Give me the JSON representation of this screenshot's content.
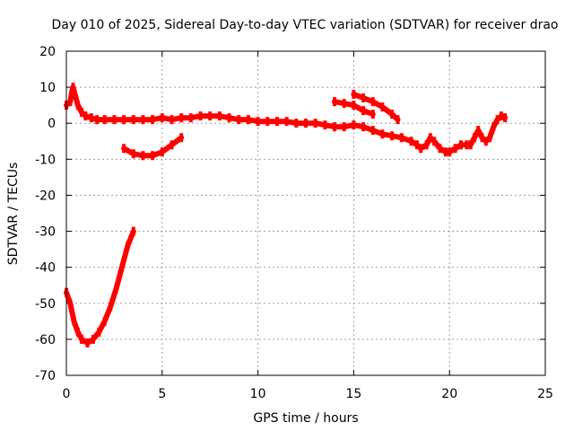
{
  "chart_data": {
    "type": "scatter",
    "title": "Day 010 of 2025, Sidereal Day-to-day VTEC variation (SDTVAR) for receiver drao",
    "xlabel": "GPS time / hours",
    "ylabel": "SDTVAR / TECUs",
    "xlim": [
      0,
      25
    ],
    "ylim": [
      -70,
      20
    ],
    "x_ticks": [
      0,
      5,
      10,
      15,
      20,
      25
    ],
    "y_ticks": [
      20,
      10,
      0,
      -10,
      -20,
      -30,
      -40,
      -50,
      -60,
      -70
    ],
    "x_tick_labels": [
      "0",
      "5",
      "10",
      "15",
      "20",
      "25"
    ],
    "y_tick_labels": [
      "20",
      "10",
      "0",
      "-10",
      "-20",
      "-30",
      "-40",
      "-50",
      "-60",
      "-70"
    ],
    "grid": true,
    "series_color": "#ff0000",
    "series": [
      {
        "name": "main-arc",
        "points": [
          [
            0.0,
            5
          ],
          [
            0.2,
            6
          ],
          [
            0.3,
            9
          ],
          [
            0.35,
            10
          ],
          [
            0.45,
            8
          ],
          [
            0.6,
            5
          ],
          [
            0.8,
            3
          ],
          [
            1.0,
            2
          ],
          [
            1.3,
            1.5
          ],
          [
            1.6,
            1
          ],
          [
            2.0,
            1
          ],
          [
            2.5,
            1
          ],
          [
            3.0,
            1
          ],
          [
            3.5,
            1
          ],
          [
            4.0,
            1
          ],
          [
            4.5,
            1
          ],
          [
            5.0,
            1.5
          ],
          [
            5.5,
            1
          ],
          [
            6.0,
            1.5
          ],
          [
            6.5,
            1.5
          ],
          [
            7.0,
            2
          ],
          [
            7.5,
            2
          ],
          [
            8.0,
            2
          ],
          [
            8.5,
            1.5
          ],
          [
            9.0,
            1
          ],
          [
            9.5,
            1
          ],
          [
            10.0,
            0.5
          ],
          [
            10.5,
            0.5
          ],
          [
            11.0,
            0.5
          ],
          [
            11.5,
            0.5
          ],
          [
            12.0,
            0
          ],
          [
            12.5,
            0
          ],
          [
            13.0,
            0
          ],
          [
            13.5,
            -0.5
          ],
          [
            14.0,
            -1
          ],
          [
            14.5,
            -1
          ],
          [
            15.0,
            -0.5
          ],
          [
            15.5,
            -1
          ],
          [
            16.0,
            -2
          ],
          [
            16.5,
            -3
          ],
          [
            17.0,
            -3.5
          ],
          [
            17.5,
            -4
          ],
          [
            18.0,
            -5
          ],
          [
            18.3,
            -6
          ],
          [
            18.5,
            -7
          ],
          [
            18.8,
            -6
          ],
          [
            19.0,
            -4
          ],
          [
            19.2,
            -5
          ],
          [
            19.5,
            -7
          ],
          [
            19.8,
            -8
          ],
          [
            20.0,
            -8
          ],
          [
            20.3,
            -7
          ],
          [
            20.6,
            -6
          ],
          [
            20.9,
            -6
          ],
          [
            21.1,
            -6
          ],
          [
            21.3,
            -4
          ],
          [
            21.5,
            -2
          ],
          [
            21.7,
            -4
          ],
          [
            21.9,
            -5
          ],
          [
            22.1,
            -4
          ],
          [
            22.3,
            -1
          ],
          [
            22.5,
            1
          ],
          [
            22.7,
            2
          ],
          [
            22.9,
            1.5
          ]
        ]
      },
      {
        "name": "arc-3.5-to-6",
        "points": [
          [
            3.0,
            -7
          ],
          [
            3.5,
            -8.5
          ],
          [
            4.0,
            -9
          ],
          [
            4.5,
            -9
          ],
          [
            5.0,
            -8
          ],
          [
            5.5,
            -6
          ],
          [
            6.0,
            -4
          ]
        ]
      },
      {
        "name": "arc-14-to-17",
        "points": [
          [
            14.0,
            6
          ],
          [
            14.5,
            5.5
          ],
          [
            15.0,
            5
          ],
          [
            15.5,
            3.5
          ],
          [
            16.0,
            2.5
          ]
        ]
      },
      {
        "name": "arc-15-to-17.5",
        "points": [
          [
            15.0,
            8
          ],
          [
            15.5,
            7
          ],
          [
            16.0,
            6
          ],
          [
            16.5,
            4.5
          ],
          [
            17.0,
            2.5
          ],
          [
            17.3,
            1
          ]
        ]
      },
      {
        "name": "deep-arc",
        "points": [
          [
            0.0,
            -47
          ],
          [
            0.2,
            -50
          ],
          [
            0.4,
            -55
          ],
          [
            0.6,
            -58
          ],
          [
            0.8,
            -60
          ],
          [
            1.1,
            -61
          ],
          [
            1.4,
            -60
          ],
          [
            1.7,
            -58
          ],
          [
            2.0,
            -55
          ],
          [
            2.3,
            -51
          ],
          [
            2.6,
            -46
          ],
          [
            2.9,
            -40
          ],
          [
            3.2,
            -34
          ],
          [
            3.5,
            -30
          ]
        ]
      }
    ]
  }
}
